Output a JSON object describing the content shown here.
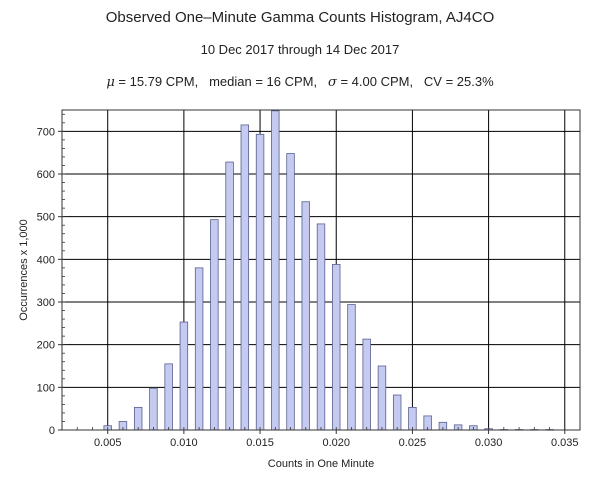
{
  "chart_data": {
    "type": "bar",
    "title": "Observed One–Minute Gamma Counts Histogram, AJ4CO",
    "subtitle": "10 Dec 2017 through 14 Dec 2017",
    "stats": {
      "mu_symbol": "μ",
      "mu_text": " = 15.79 CPM,",
      "median_text": "median = 16 CPM,",
      "sigma_symbol": "σ",
      "sigma_text": " = 4.00 CPM,",
      "cv_text": "CV = 25.3%"
    },
    "xlabel": "Counts in One Minute",
    "ylabel": "Occurrences x 1,000",
    "xlim": [
      0.002,
      0.036
    ],
    "ylim": [
      0,
      750
    ],
    "xticks": [
      0.005,
      0.01,
      0.015,
      0.02,
      0.025,
      0.03,
      0.035
    ],
    "xtick_labels": [
      "0.005",
      "0.010",
      "0.015",
      "0.020",
      "0.025",
      "0.030",
      "0.035"
    ],
    "yticks": [
      0,
      100,
      200,
      300,
      400,
      500,
      600,
      700
    ],
    "ytick_labels": [
      "0",
      "100",
      "200",
      "300",
      "400",
      "500",
      "600",
      "700"
    ],
    "grid": true,
    "bar_width": 0.0005,
    "x": [
      0.005,
      0.006,
      0.007,
      0.008,
      0.009,
      0.01,
      0.011,
      0.012,
      0.013,
      0.014,
      0.015,
      0.016,
      0.017,
      0.018,
      0.019,
      0.02,
      0.021,
      0.022,
      0.023,
      0.024,
      0.025,
      0.026,
      0.027,
      0.028,
      0.029,
      0.03,
      0.031,
      0.032,
      0.033,
      0.034
    ],
    "values": [
      10,
      20,
      53,
      98,
      155,
      253,
      380,
      493,
      628,
      715,
      693,
      748,
      648,
      535,
      483,
      388,
      294,
      213,
      150,
      82,
      53,
      33,
      18,
      12,
      10,
      3,
      1,
      1,
      1,
      1
    ],
    "bar_fill": "#c5cbf0",
    "bar_stroke": "#5a5f8e"
  }
}
